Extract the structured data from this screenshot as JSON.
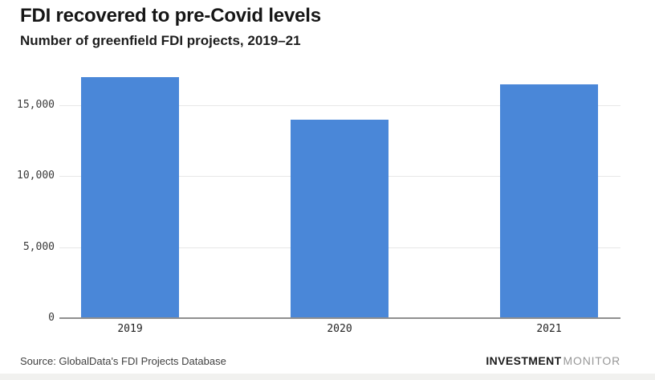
{
  "header": {
    "title": "FDI recovered to pre-Covid levels",
    "subtitle": "Number of greenfield FDI projects, 2019–21"
  },
  "chart_data": {
    "type": "bar",
    "categories": [
      "2019",
      "2020",
      "2021"
    ],
    "values": [
      17000,
      14000,
      16500
    ],
    "title": "FDI recovered to pre-Covid levels",
    "subtitle": "Number of greenfield FDI projects, 2019–21",
    "xlabel": "",
    "ylabel": "",
    "ylim": [
      0,
      17500
    ],
    "yticks": [
      0,
      5000,
      10000,
      15000
    ],
    "ytick_labels": [
      "0",
      "5,000",
      "10,000",
      "15,000"
    ],
    "grid": true,
    "legend": "none"
  },
  "colors": {
    "bar": "#4a87d8",
    "axis_line": "#8f8f8f",
    "gridline": "#e7e7e7",
    "tick_text": "#3a3a3a",
    "bottom_band": "#f1f1ef"
  },
  "footer": {
    "source": "Source: GlobalData's FDI Projects Database",
    "brand_bold": "INVESTMENT",
    "brand_light": "MONITOR"
  }
}
